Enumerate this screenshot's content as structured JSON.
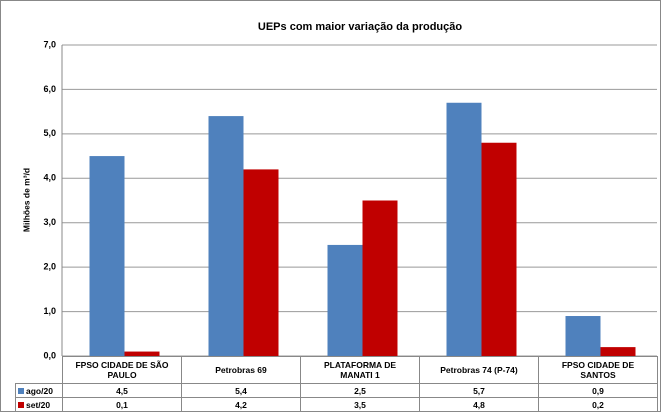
{
  "chart_data": {
    "type": "bar",
    "title": "UEPs com maior variação da produção",
    "y_label": "Milhões de m³/d",
    "categories": [
      "FPSO CIDADE DE SÃO PAULO",
      "Petrobras 69",
      "PLATAFORMA DE MANATI 1",
      "Petrobras 74 (P-74)",
      "FPSO CIDADE DE SANTOS"
    ],
    "series": [
      {
        "name": "ago/20",
        "color": "#4f81bd",
        "values": [
          4.5,
          5.4,
          2.5,
          5.7,
          0.9
        ],
        "value_labels": [
          "4,5",
          "5,4",
          "2,5",
          "5,7",
          "0,9"
        ]
      },
      {
        "name": "set/20",
        "color": "#c00000",
        "values": [
          0.1,
          4.2,
          3.5,
          4.8,
          0.2
        ],
        "value_labels": [
          "0,1",
          "4,2",
          "3,5",
          "4,8",
          "0,2"
        ]
      }
    ],
    "ylim": [
      0,
      7
    ],
    "yticks": [
      {
        "value": 0,
        "label": "0,0"
      },
      {
        "value": 1,
        "label": "1,0"
      },
      {
        "value": 2,
        "label": "2,0"
      },
      {
        "value": 3,
        "label": "3,0"
      },
      {
        "value": 4,
        "label": "4,0"
      },
      {
        "value": 5,
        "label": "5,0"
      },
      {
        "value": 6,
        "label": "6,0"
      },
      {
        "value": 7,
        "label": "7,0"
      }
    ],
    "grid": true
  }
}
